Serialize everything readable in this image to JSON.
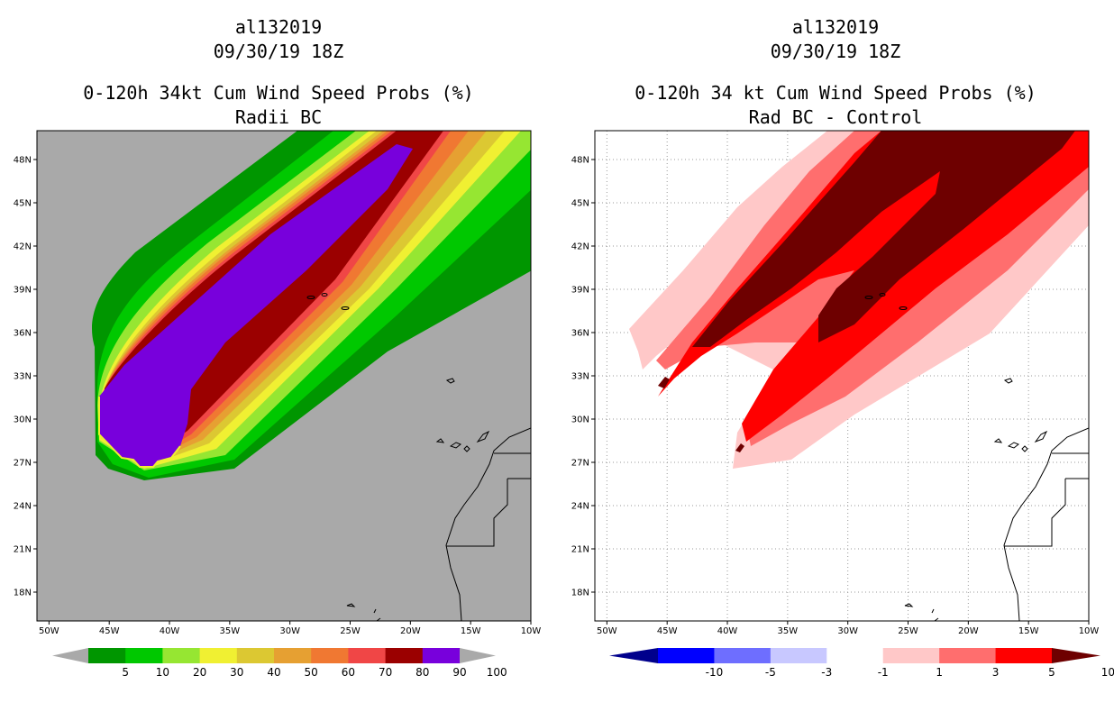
{
  "chart_data": [
    {
      "type": "map-contour",
      "title_lines": [
        "al132019",
        "09/30/19 18Z",
        "0-120h 34kt Cum Wind Speed Probs (%)",
        "Radii BC"
      ],
      "units": "%",
      "lon_range": [
        -51,
        -10
      ],
      "lat_range": [
        16,
        50
      ],
      "x_ticks": [
        "50W",
        "45W",
        "40W",
        "35W",
        "30W",
        "25W",
        "20W",
        "15W",
        "10W"
      ],
      "y_ticks": [
        "48N",
        "45N",
        "42N",
        "39N",
        "36N",
        "33N",
        "30N",
        "27N",
        "24N",
        "21N",
        "18N"
      ],
      "grid": false,
      "background_color": "#a9a9a9",
      "colorbar": {
        "labels": [
          "5",
          "10",
          "20",
          "30",
          "40",
          "50",
          "60",
          "70",
          "80",
          "90",
          "100"
        ],
        "colors": [
          "#a9a9a9",
          "#009600",
          "#00c800",
          "#96e632",
          "#f0f032",
          "#dcc832",
          "#e6a032",
          "#f07832",
          "#f04646",
          "#9b0000",
          "#7800dc",
          "#a9a9a9"
        ],
        "extend_both": true
      },
      "contour_levels": [
        5,
        10,
        20,
        30,
        40,
        50,
        60,
        70,
        80,
        90,
        100
      ]
    },
    {
      "type": "map-contour",
      "title_lines": [
        "al132019",
        "09/30/19 18Z",
        "0-120h 34 kt Cum Wind Speed Probs (%)",
        "Rad BC - Control"
      ],
      "units": "%",
      "lon_range": [
        -51,
        -10
      ],
      "lat_range": [
        16,
        50
      ],
      "x_ticks": [
        "50W",
        "45W",
        "40W",
        "35W",
        "30W",
        "25W",
        "20W",
        "15W",
        "10W"
      ],
      "y_ticks": [
        "48N",
        "45N",
        "42N",
        "39N",
        "36N",
        "33N",
        "30N",
        "27N",
        "24N",
        "21N",
        "18N"
      ],
      "grid": true,
      "background_color": "#ffffff",
      "colorbar": {
        "labels": [
          "-10",
          "-5",
          "-3",
          "-1",
          "1",
          "3",
          "5",
          "10"
        ],
        "colors": [
          "#00008c",
          "#0000ff",
          "#6e6eff",
          "#c8c8ff",
          "#ffffff",
          "#ffc8c8",
          "#ff6e6e",
          "#ff0000",
          "#6e0000"
        ],
        "extend_both": true
      },
      "contour_levels": [
        -10,
        -5,
        -3,
        -1,
        1,
        3,
        5,
        10
      ]
    }
  ]
}
